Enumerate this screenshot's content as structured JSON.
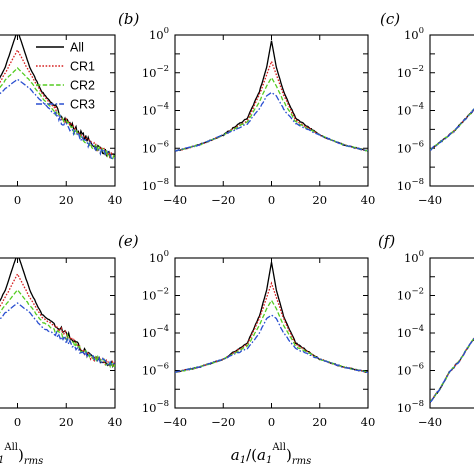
{
  "chart_data": [
    {
      "panel": "a",
      "type": "line",
      "yscale": "log",
      "ylim": [
        1e-08,
        1
      ],
      "xlim": [
        -40,
        40
      ],
      "xticks": [
        0,
        20,
        40
      ],
      "yticks": [],
      "legend": {
        "placement": "top-right",
        "entries": [
          "All",
          "CR1",
          "CR2",
          "CR3"
        ]
      },
      "series": [
        {
          "name": "All",
          "color": "#000000",
          "dash": "solid"
        },
        {
          "name": "CR1",
          "color": "#d62020",
          "dash": "dotted"
        },
        {
          "name": "CR2",
          "color": "#55cc22",
          "dash": "dashed"
        },
        {
          "name": "CR3",
          "color": "#2a4fd0",
          "dash": "dashdot"
        }
      ],
      "peaks": [
        1.8,
        0.16,
        0.018,
        0.0045
      ],
      "tails": [
        [
          [
            0,
            1.8
          ],
          [
            5,
            0.02
          ],
          [
            10,
            0.001
          ],
          [
            20,
            3e-05
          ],
          [
            30,
            2e-06
          ],
          [
            40,
            3e-07
          ]
        ],
        [
          [
            0,
            0.16
          ],
          [
            5,
            0.01
          ],
          [
            10,
            0.0008
          ],
          [
            20,
            2.5e-05
          ],
          [
            30,
            1.8e-06
          ],
          [
            40,
            3e-07
          ]
        ],
        [
          [
            0,
            0.018
          ],
          [
            5,
            0.004
          ],
          [
            10,
            0.0005
          ],
          [
            20,
            2e-05
          ],
          [
            30,
            1.6e-06
          ],
          [
            40,
            3e-07
          ]
        ],
        [
          [
            0,
            0.0045
          ],
          [
            5,
            0.0015
          ],
          [
            10,
            0.0003
          ],
          [
            20,
            1.5e-05
          ],
          [
            30,
            1.4e-06
          ],
          [
            40,
            3e-07
          ]
        ]
      ]
    },
    {
      "panel": "b",
      "label": "(b)",
      "type": "line",
      "yscale": "log",
      "ylim": [
        1e-08,
        1
      ],
      "xlim": [
        -40,
        40
      ],
      "xticks": [
        -40,
        -20,
        0,
        20,
        40
      ],
      "yticks": [
        "10^0",
        "10^-2",
        "10^-4",
        "10^-6",
        "10^-8"
      ],
      "peaks": [
        0.5,
        0.04,
        0.0055,
        0.0009
      ],
      "tails": [
        [
          [
            0,
            0.5
          ],
          [
            2,
            0.02
          ],
          [
            5,
            0.001
          ],
          [
            10,
            4e-05
          ],
          [
            20,
            5e-06
          ],
          [
            30,
            1.5e-06
          ],
          [
            40,
            7e-07
          ]
        ],
        [
          [
            0,
            0.04
          ],
          [
            2,
            0.008
          ],
          [
            5,
            0.0007
          ],
          [
            10,
            3e-05
          ],
          [
            20,
            5e-06
          ],
          [
            30,
            1.5e-06
          ],
          [
            40,
            7e-07
          ]
        ],
        [
          [
            0,
            0.0055
          ],
          [
            2,
            0.002
          ],
          [
            5,
            0.0003
          ],
          [
            10,
            2.5e-05
          ],
          [
            20,
            5e-06
          ],
          [
            30,
            1.5e-06
          ],
          [
            40,
            7e-07
          ]
        ],
        [
          [
            0,
            0.0009
          ],
          [
            2,
            0.0006
          ],
          [
            5,
            0.00012
          ],
          [
            10,
            2e-05
          ],
          [
            20,
            5e-06
          ],
          [
            30,
            1.5e-06
          ],
          [
            40,
            7e-07
          ]
        ]
      ]
    },
    {
      "panel": "c",
      "label": "(c)",
      "type": "line",
      "yscale": "log",
      "ylim": [
        1e-08,
        1
      ],
      "xlim": [
        -40,
        40
      ],
      "xticks": [
        -40,
        -20
      ],
      "yticks": [
        "10^0",
        "10^-2",
        "10^-4",
        "10^-6",
        "10^-8"
      ],
      "peaks": [
        0.5,
        0.04,
        0.0055,
        0.0009
      ],
      "tails": [
        [
          [
            -40,
            8e-07
          ],
          [
            -35,
            2.5e-06
          ],
          [
            -30,
            8e-06
          ],
          [
            -25,
            4e-05
          ],
          [
            -20,
            0.0002
          ]
        ]
      ]
    },
    {
      "panel": "d",
      "type": "line",
      "yscale": "log",
      "ylim": [
        1e-08,
        1
      ],
      "xlim": [
        -40,
        40
      ],
      "xticks": [
        0,
        20,
        40
      ],
      "peaks": [
        1.8,
        0.14,
        0.02,
        0.004
      ],
      "tails": [
        [
          [
            0,
            1.8
          ],
          [
            5,
            0.02
          ],
          [
            10,
            0.001
          ],
          [
            20,
            0.0001
          ],
          [
            30,
            5e-06
          ],
          [
            40,
            2e-06
          ]
        ],
        [
          [
            0,
            0.14
          ],
          [
            5,
            0.008
          ],
          [
            10,
            0.0007
          ],
          [
            20,
            8e-05
          ],
          [
            30,
            5e-06
          ],
          [
            40,
            2e-06
          ]
        ],
        [
          [
            0,
            0.02
          ],
          [
            5,
            0.003
          ],
          [
            10,
            0.0004
          ],
          [
            20,
            6e-05
          ],
          [
            30,
            5e-06
          ],
          [
            40,
            2e-06
          ]
        ],
        [
          [
            0,
            0.004
          ],
          [
            5,
            0.0012
          ],
          [
            10,
            0.0002
          ],
          [
            20,
            4e-05
          ],
          [
            30,
            5e-06
          ],
          [
            40,
            2e-06
          ]
        ]
      ],
      "xlabel_fragment": "1^{All})_{rms}"
    },
    {
      "panel": "e",
      "label": "(e)",
      "type": "line",
      "yscale": "log",
      "ylim": [
        1e-08,
        1
      ],
      "xlim": [
        -40,
        40
      ],
      "xticks": [
        -40,
        -20,
        0,
        20,
        40
      ],
      "yticks": [
        "10^0",
        "10^-2",
        "10^-4",
        "10^-6",
        "10^-8"
      ],
      "peaks": [
        0.6,
        0.045,
        0.0055,
        0.0009
      ],
      "tails": [
        [
          [
            0,
            0.6
          ],
          [
            2,
            0.02
          ],
          [
            5,
            0.0008
          ],
          [
            10,
            3e-05
          ],
          [
            20,
            4e-06
          ],
          [
            30,
            1.5e-06
          ],
          [
            40,
            8e-07
          ]
        ],
        [
          [
            0,
            0.045
          ],
          [
            2,
            0.008
          ],
          [
            5,
            0.0006
          ],
          [
            10,
            2.5e-05
          ],
          [
            20,
            4e-06
          ],
          [
            30,
            1.5e-06
          ],
          [
            40,
            8e-07
          ]
        ],
        [
          [
            0,
            0.0055
          ],
          [
            2,
            0.002
          ],
          [
            5,
            0.00025
          ],
          [
            10,
            2e-05
          ],
          [
            20,
            4e-06
          ],
          [
            30,
            1.5e-06
          ],
          [
            40,
            8e-07
          ]
        ],
        [
          [
            0,
            0.0009
          ],
          [
            2,
            0.0006
          ],
          [
            5,
            0.0001
          ],
          [
            10,
            1.5e-05
          ],
          [
            20,
            4e-06
          ],
          [
            30,
            1.5e-06
          ],
          [
            40,
            8e-07
          ]
        ]
      ],
      "xlabel": "a_1/(a_1^{All})_{rms}"
    },
    {
      "panel": "f",
      "label": "(f)",
      "type": "line",
      "yscale": "log",
      "ylim": [
        1e-08,
        1
      ],
      "xlim": [
        -40,
        40
      ],
      "xticks": [
        -40,
        -20
      ],
      "yticks": [
        "10^0",
        "10^-2",
        "10^-4",
        "10^-6",
        "10^-8"
      ],
      "peaks": [
        0.6,
        0.045,
        0.0055,
        0.0009
      ],
      "tails": [
        [
          [
            -40,
            2e-08
          ],
          [
            -36,
            1e-07
          ],
          [
            -32,
            8e-07
          ],
          [
            -28,
            3e-06
          ],
          [
            -24,
            2e-05
          ],
          [
            -20,
            0.0001
          ]
        ]
      ]
    }
  ]
}
